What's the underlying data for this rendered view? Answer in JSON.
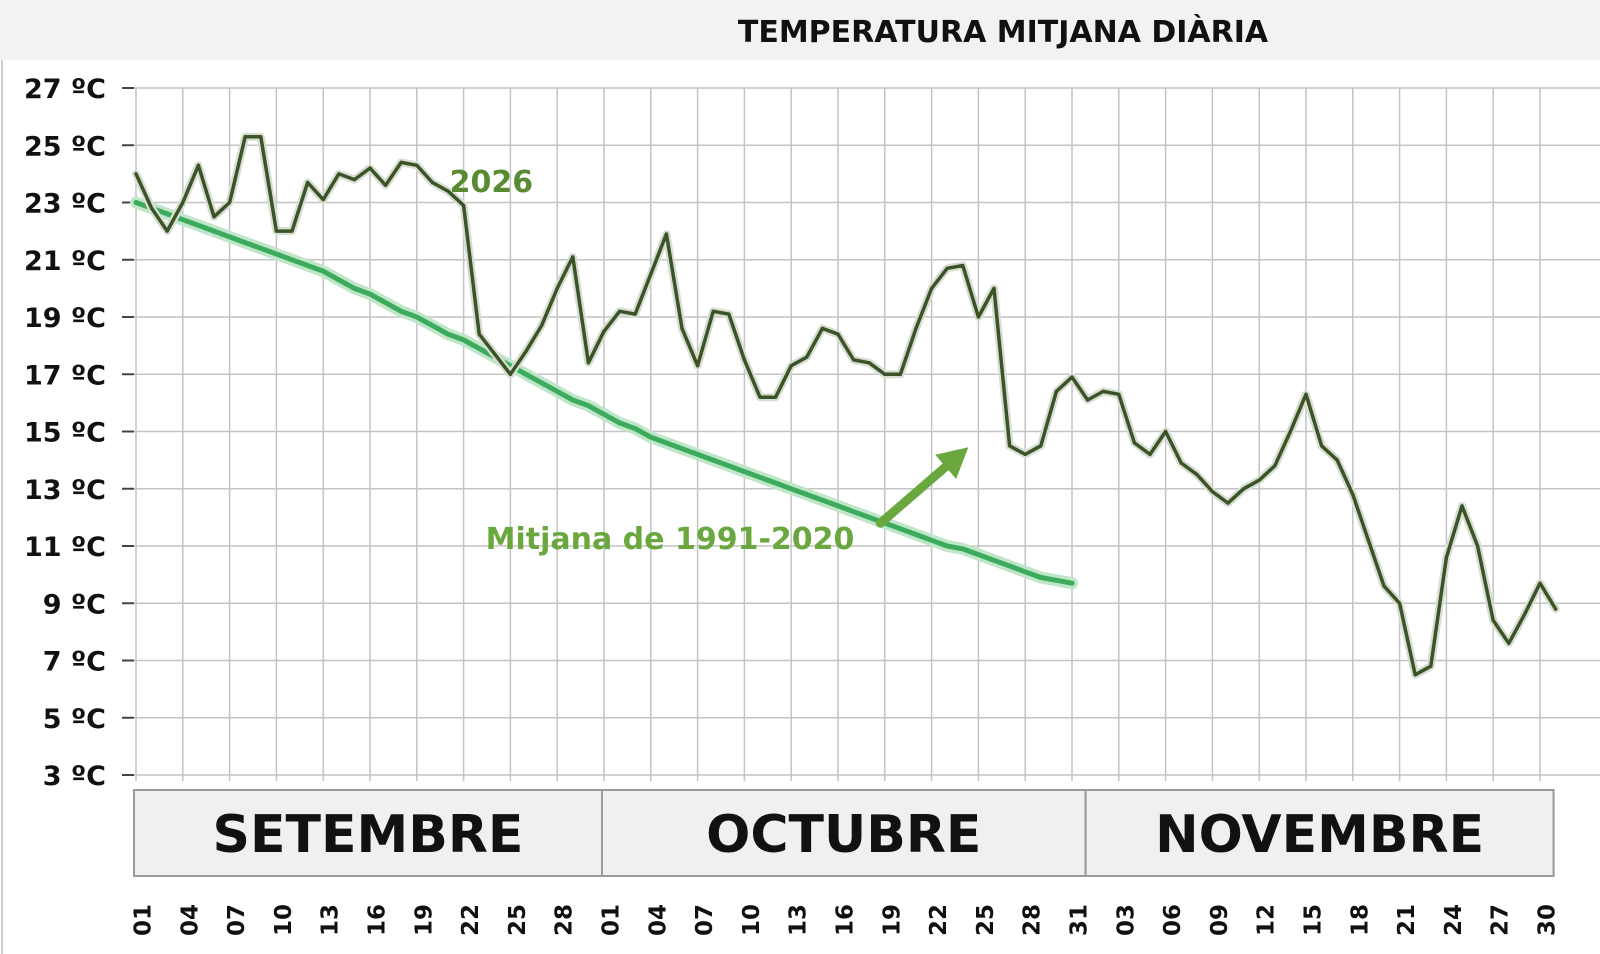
{
  "chart_data": {
    "type": "line",
    "title": "TEMPERATURA MITJANA DIÀRIA",
    "ylim": [
      3,
      27
    ],
    "yticks": [
      3,
      5,
      7,
      9,
      11,
      13,
      15,
      17,
      19,
      21,
      23,
      25,
      27
    ],
    "ytick_labels": [
      "3 ºC",
      "5 ºC",
      "7 ºC",
      "9 ºC",
      "11 ºC",
      "13 ºC",
      "15 ºC",
      "17 ºC",
      "19 ºC",
      "21 ºC",
      "23 ºC",
      "25 ºC",
      "27 ºC"
    ],
    "months": [
      {
        "name": "SETEMBRE",
        "start_index": 0,
        "days": 30
      },
      {
        "name": "OCTUBRE",
        "start_index": 30,
        "days": 31
      },
      {
        "name": "NOVEMBRE",
        "start_index": 61,
        "days": 30
      }
    ],
    "xtick_labels": [
      {
        "index": 0,
        "label": "01"
      },
      {
        "index": 3,
        "label": "04"
      },
      {
        "index": 6,
        "label": "07"
      },
      {
        "index": 9,
        "label": "10"
      },
      {
        "index": 12,
        "label": "13"
      },
      {
        "index": 15,
        "label": "16"
      },
      {
        "index": 18,
        "label": "19"
      },
      {
        "index": 21,
        "label": "22"
      },
      {
        "index": 24,
        "label": "25"
      },
      {
        "index": 27,
        "label": "28"
      },
      {
        "index": 30,
        "label": "01"
      },
      {
        "index": 33,
        "label": "04"
      },
      {
        "index": 36,
        "label": "07"
      },
      {
        "index": 39,
        "label": "10"
      },
      {
        "index": 42,
        "label": "13"
      },
      {
        "index": 45,
        "label": "16"
      },
      {
        "index": 48,
        "label": "19"
      },
      {
        "index": 51,
        "label": "22"
      },
      {
        "index": 54,
        "label": "25"
      },
      {
        "index": 57,
        "label": "28"
      },
      {
        "index": 60,
        "label": "31"
      },
      {
        "index": 63,
        "label": "03"
      },
      {
        "index": 66,
        "label": "06"
      },
      {
        "index": 69,
        "label": "09"
      },
      {
        "index": 72,
        "label": "12"
      },
      {
        "index": 75,
        "label": "15"
      },
      {
        "index": 78,
        "label": "18"
      },
      {
        "index": 81,
        "label": "21"
      },
      {
        "index": 84,
        "label": "24"
      },
      {
        "index": 87,
        "label": "27"
      },
      {
        "index": 90,
        "label": "30"
      }
    ],
    "series": [
      {
        "name": "2026",
        "color": "#3a5428",
        "values": [
          24.0,
          22.8,
          22.0,
          23.0,
          24.3,
          22.5,
          23.0,
          25.3,
          25.3,
          22.0,
          22.0,
          23.7,
          23.1,
          24.0,
          23.8,
          24.2,
          23.6,
          24.4,
          24.3,
          23.7,
          23.4,
          22.9,
          18.4,
          17.7,
          17.0,
          17.8,
          18.7,
          20.0,
          21.1,
          17.4,
          18.5,
          19.2,
          19.1,
          20.5,
          21.9,
          18.6,
          17.3,
          19.2,
          19.1,
          17.5,
          16.2,
          16.2,
          17.3,
          17.6,
          18.6,
          18.4,
          17.5,
          17.4,
          17.0,
          17.0,
          18.6,
          20.0,
          20.7,
          20.8,
          19.0,
          20.0,
          14.5,
          14.2,
          14.5,
          16.4,
          16.9,
          16.1,
          16.4,
          16.3,
          14.6,
          14.2,
          15.0,
          13.9,
          13.5,
          12.9,
          12.5,
          13.0,
          13.3,
          13.8,
          15.0,
          16.3,
          14.5,
          14.0,
          12.8,
          11.2,
          9.6,
          9.0,
          6.5,
          6.8,
          10.6,
          12.4,
          11.0,
          8.4,
          7.6,
          8.6,
          9.7,
          8.8
        ]
      },
      {
        "name": "Mitjana de 1991-2020",
        "color": "#3dab5e",
        "values": [
          23.0,
          22.8,
          22.6,
          22.4,
          22.2,
          22.0,
          21.8,
          21.6,
          21.4,
          21.2,
          21.0,
          20.8,
          20.6,
          20.3,
          20.0,
          19.8,
          19.5,
          19.2,
          19.0,
          18.7,
          18.4,
          18.2,
          17.9,
          17.6,
          17.3,
          17.0,
          16.7,
          16.4,
          16.1,
          15.9,
          15.6,
          15.3,
          15.1,
          14.8,
          14.6,
          14.4,
          14.2,
          14.0,
          13.8,
          13.6,
          13.4,
          13.2,
          13.0,
          12.8,
          12.6,
          12.4,
          12.2,
          12.0,
          11.8,
          11.6,
          11.4,
          11.2,
          11.0,
          10.9,
          10.7,
          10.5,
          10.3,
          10.1,
          9.9,
          9.8,
          9.7
        ]
      }
    ],
    "annotations": [
      {
        "text": "2026",
        "color": "#5a8a32",
        "target_index": 21,
        "target_value": 23.5
      },
      {
        "text": "Mitjana de 1991-2020",
        "color": "#6aa83f",
        "arrow_to_index": 54,
        "arrow_to_value": 14.8
      }
    ]
  }
}
